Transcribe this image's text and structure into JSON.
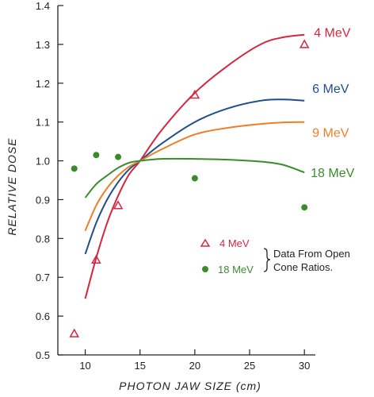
{
  "chart_data": {
    "type": "line",
    "xlabel": "PHOTON JAW SIZE (cm)",
    "ylabel": "RELATIVE DOSE",
    "xlim": [
      7.5,
      31
    ],
    "ylim": [
      0.5,
      1.4
    ],
    "x_ticks": [
      "10",
      "15",
      "20",
      "25",
      "30"
    ],
    "x_tick_values": [
      10,
      15,
      20,
      25,
      30
    ],
    "y_ticks": [
      "0.5",
      "0.6",
      "0.7",
      "0.8",
      "0.9",
      "1.0",
      "1.1",
      "1.2",
      "1.3",
      "1.4"
    ],
    "y_tick_values": [
      0.5,
      0.6,
      0.7,
      0.8,
      0.9,
      1.0,
      1.1,
      1.2,
      1.3,
      1.4
    ],
    "series": [
      {
        "name": "4 MeV",
        "color": "#d7263d",
        "x": [
          10,
          11,
          12,
          13,
          14,
          15,
          17,
          20,
          23,
          26,
          28,
          30
        ],
        "y": [
          0.645,
          0.75,
          0.84,
          0.91,
          0.965,
          1.0,
          1.08,
          1.175,
          1.245,
          1.3,
          1.318,
          1.325
        ]
      },
      {
        "name": "6 MeV",
        "color": "#1f4e8c",
        "x": [
          10,
          11,
          12,
          13,
          14,
          15,
          17,
          20,
          23,
          26,
          28,
          30
        ],
        "y": [
          0.76,
          0.84,
          0.9,
          0.945,
          0.978,
          1.0,
          1.045,
          1.1,
          1.135,
          1.155,
          1.158,
          1.155
        ]
      },
      {
        "name": "9 MeV",
        "color": "#f07d28",
        "x": [
          10,
          11,
          12,
          13,
          14,
          15,
          17,
          20,
          23,
          26,
          28,
          30
        ],
        "y": [
          0.82,
          0.885,
          0.93,
          0.962,
          0.985,
          1.0,
          1.03,
          1.068,
          1.085,
          1.095,
          1.099,
          1.1
        ]
      },
      {
        "name": "18 MeV",
        "color": "#3a8c2b",
        "x": [
          10,
          11,
          12,
          13,
          14,
          15,
          17,
          20,
          23,
          26,
          28,
          30
        ],
        "y": [
          0.905,
          0.94,
          0.962,
          0.982,
          0.995,
          1.0,
          1.005,
          1.005,
          1.003,
          0.998,
          0.99,
          0.97
        ]
      }
    ],
    "open_cone_data": [
      {
        "name": "4 MeV",
        "marker": "triangle",
        "color": "#d7263d",
        "x": [
          9,
          11,
          13,
          20,
          30
        ],
        "y": [
          0.555,
          0.745,
          0.885,
          1.17,
          1.3
        ]
      },
      {
        "name": "18 MeV",
        "marker": "circle",
        "color": "#3a8c2b",
        "x": [
          9,
          11,
          13,
          20,
          30
        ],
        "y": [
          0.98,
          1.015,
          1.01,
          0.955,
          0.88
        ]
      }
    ],
    "legend": {
      "placement": "lower-right",
      "entries": [
        "4 MeV",
        "18 MeV"
      ],
      "caption_lines": [
        "Data From Open",
        "Cone Ratios."
      ]
    }
  }
}
